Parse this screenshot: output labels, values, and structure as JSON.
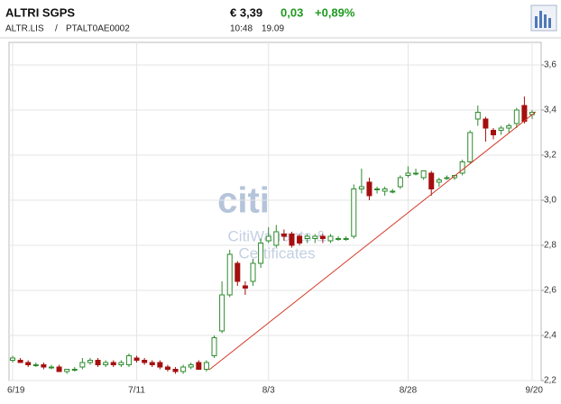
{
  "header": {
    "title": "ALTRI SGPS",
    "price": "€ 3,39",
    "change": "0,03",
    "change_pct": "+0,89%",
    "symbol": "ALTR.LIS",
    "separator": "/",
    "isin": "PTALT0AE0002",
    "time": "10:48",
    "date": "19.09"
  },
  "watermark": {
    "logo": "citi",
    "line1": "CitiWarrants &",
    "line2": "Certificates"
  },
  "chart_data": {
    "type": "candlestick",
    "categories": [
      "6/19",
      null,
      null,
      null,
      null,
      null,
      null,
      null,
      null,
      null,
      null,
      null,
      null,
      null,
      null,
      null,
      "7/11",
      null,
      null,
      null,
      null,
      null,
      null,
      null,
      null,
      null,
      null,
      null,
      null,
      null,
      null,
      null,
      null,
      "8/3",
      null,
      null,
      null,
      null,
      null,
      null,
      null,
      null,
      null,
      null,
      null,
      null,
      null,
      null,
      null,
      null,
      null,
      "8/28",
      null,
      null,
      null,
      null,
      null,
      null,
      null,
      null,
      null,
      null,
      null,
      null,
      null,
      null,
      null,
      "9/20"
    ],
    "open": [
      2.29,
      2.29,
      2.28,
      2.27,
      2.27,
      2.26,
      2.26,
      2.24,
      2.25,
      2.26,
      2.28,
      2.29,
      2.27,
      2.28,
      2.27,
      2.27,
      2.3,
      2.29,
      2.28,
      2.28,
      2.26,
      2.25,
      2.24,
      2.26,
      2.28,
      2.25,
      2.31,
      2.42,
      2.58,
      2.72,
      2.62,
      2.64,
      2.72,
      2.82,
      2.8,
      2.85,
      2.85,
      2.84,
      2.83,
      2.83,
      2.84,
      2.82,
      2.83,
      2.83,
      2.84,
      3.05,
      3.08,
      3.05,
      3.04,
      3.04,
      3.06,
      3.11,
      3.12,
      3.1,
      3.12,
      3.08,
      3.1,
      3.1,
      3.12,
      3.17,
      3.36,
      3.36,
      3.31,
      3.31,
      3.32,
      3.34,
      3.42,
      3.38
    ],
    "high": [
      2.31,
      2.3,
      2.29,
      2.28,
      2.28,
      2.27,
      2.27,
      2.25,
      2.26,
      2.3,
      2.3,
      2.3,
      2.29,
      2.29,
      2.29,
      2.32,
      2.31,
      2.3,
      2.29,
      2.29,
      2.27,
      2.26,
      2.27,
      2.28,
      2.29,
      2.29,
      2.4,
      2.64,
      2.78,
      2.73,
      2.64,
      2.74,
      2.83,
      2.88,
      2.89,
      2.87,
      2.86,
      2.85,
      2.85,
      2.85,
      2.85,
      2.85,
      2.84,
      2.84,
      3.07,
      3.14,
      3.1,
      3.06,
      3.06,
      3.05,
      3.11,
      3.15,
      3.14,
      3.13,
      3.13,
      3.1,
      3.11,
      3.11,
      3.18,
      3.31,
      3.42,
      3.37,
      3.32,
      3.33,
      3.34,
      3.41,
      3.46,
      3.4
    ],
    "low": [
      2.28,
      2.28,
      2.26,
      2.26,
      2.25,
      2.25,
      2.24,
      2.23,
      2.24,
      2.25,
      2.27,
      2.26,
      2.26,
      2.26,
      2.26,
      2.26,
      2.28,
      2.27,
      2.26,
      2.25,
      2.24,
      2.23,
      2.23,
      2.25,
      2.25,
      2.24,
      2.3,
      2.41,
      2.57,
      2.62,
      2.58,
      2.62,
      2.7,
      2.81,
      2.79,
      2.82,
      2.79,
      2.8,
      2.81,
      2.81,
      2.81,
      2.81,
      2.82,
      2.82,
      2.83,
      3.03,
      3.0,
      3.03,
      3.02,
      3.03,
      3.05,
      3.1,
      3.11,
      3.09,
      3.02,
      3.06,
      3.09,
      3.09,
      3.11,
      3.16,
      3.33,
      3.26,
      3.27,
      3.29,
      3.3,
      3.32,
      3.34,
      3.36
    ],
    "close": [
      2.3,
      2.28,
      2.27,
      2.27,
      2.26,
      2.26,
      2.24,
      2.25,
      2.25,
      2.28,
      2.29,
      2.27,
      2.28,
      2.27,
      2.28,
      2.31,
      2.29,
      2.28,
      2.27,
      2.26,
      2.25,
      2.24,
      2.26,
      2.27,
      2.25,
      2.28,
      2.39,
      2.58,
      2.76,
      2.64,
      2.61,
      2.72,
      2.81,
      2.84,
      2.86,
      2.84,
      2.8,
      2.81,
      2.84,
      2.84,
      2.83,
      2.84,
      2.83,
      2.83,
      3.05,
      3.06,
      3.02,
      3.05,
      3.05,
      3.04,
      3.1,
      3.12,
      3.12,
      3.13,
      3.05,
      3.09,
      3.1,
      3.11,
      3.17,
      3.3,
      3.39,
      3.32,
      3.29,
      3.32,
      3.33,
      3.4,
      3.35,
      3.39
    ],
    "up_color": "#2e8b2e",
    "down_color": "#a50f0f",
    "trendline_color": "#d43a2a",
    "ylim": [
      2.2,
      3.7
    ],
    "yticks": [
      {
        "value": 2.2,
        "label": "2,2"
      },
      {
        "value": 2.4,
        "label": "2,4"
      },
      {
        "value": 2.6,
        "label": "2,6"
      },
      {
        "value": 2.8,
        "label": "2,8"
      },
      {
        "value": 3.0,
        "label": "3,0"
      },
      {
        "value": 3.2,
        "label": "3,2"
      },
      {
        "value": 3.4,
        "label": "3,4"
      },
      {
        "value": 3.6,
        "label": "3,6"
      }
    ],
    "grid": true
  }
}
